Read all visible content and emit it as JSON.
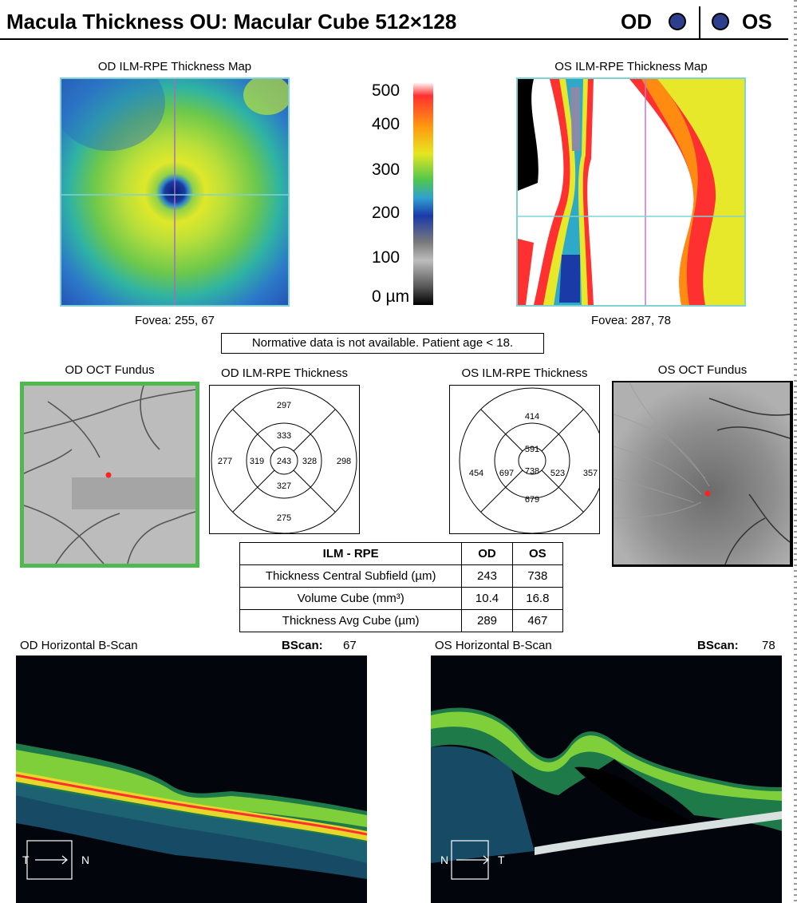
{
  "header": {
    "title": "Macula Thickness OU: Macular Cube 512×128",
    "od_label": "OD",
    "os_label": "OS",
    "dot_color": "#2c3e8c"
  },
  "maps": {
    "od_title": "OD ILM-RPE Thickness Map",
    "os_title": "OS ILM-RPE Thickness Map",
    "od_fovea": "Fovea: 255, 67",
    "os_fovea": "Fovea: 287, 78"
  },
  "scale": {
    "ticks": [
      "500",
      "400",
      "300",
      "200",
      "100",
      "0 µm"
    ]
  },
  "notice": "Normative data is not available. Patient age < 18.",
  "fundus": {
    "od_title": "OD OCT Fundus",
    "os_title": "OS OCT Fundus",
    "od_border_color": "#4fb84f"
  },
  "etdrs": {
    "od": {
      "title": "OD ILM-RPE Thickness",
      "center": "243",
      "inner_top": "333",
      "inner_left": "319",
      "inner_right": "328",
      "inner_bottom": "327",
      "outer_top": "297",
      "outer_left": "277",
      "outer_right": "298",
      "outer_bottom": "275"
    },
    "os": {
      "title": "OS ILM-RPE Thickness",
      "center": "738",
      "inner_top": "591",
      "inner_left": "697",
      "inner_right": "523",
      "inner_bottom": "679",
      "outer_top": "414",
      "outer_left": "454",
      "outer_right": "357",
      "outer_bottom": ""
    }
  },
  "summary": {
    "headers": [
      "ILM - RPE",
      "OD",
      "OS"
    ],
    "rows": [
      {
        "label": "Thickness Central Subfield (µm)",
        "od": "243",
        "os": "738"
      },
      {
        "label": "Volume Cube (mm³)",
        "od": "10.4",
        "os": "16.8"
      },
      {
        "label": "Thickness Avg Cube (µm)",
        "od": "289",
        "os": "467"
      }
    ]
  },
  "bscans": {
    "od_title": "OD Horizontal B-Scan",
    "os_title": "OS Horizontal B-Scan",
    "bscan_label": "BScan:",
    "od_bscan": "67",
    "os_bscan": "78",
    "od_left": "T",
    "od_right": "N",
    "os_left": "N",
    "os_right": "T"
  }
}
